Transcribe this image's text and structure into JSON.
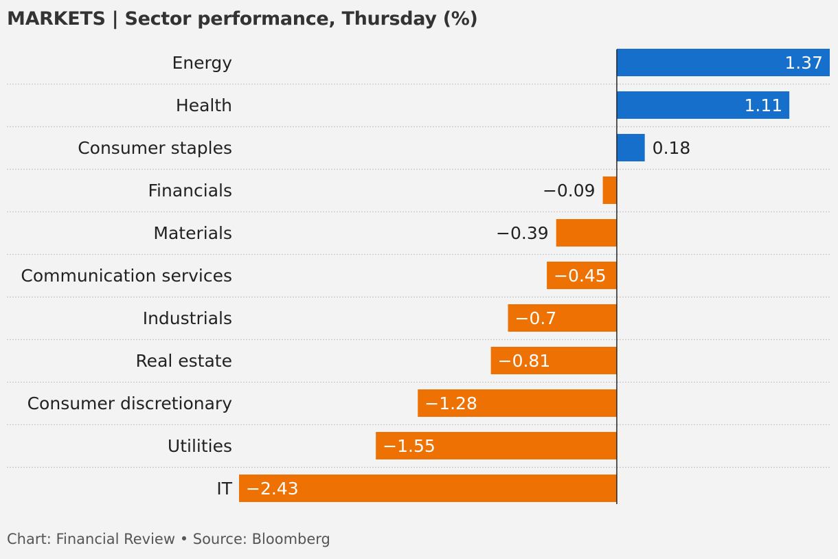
{
  "chart_data": {
    "type": "bar",
    "orientation": "horizontal",
    "title": "MARKETS | Sector performance, Thursday (%)",
    "categories": [
      "Energy",
      "Health",
      "Consumer staples",
      "Financials",
      "Materials",
      "Communication services",
      "Industrials",
      "Real estate",
      "Consumer discretionary",
      "Utilities",
      "IT"
    ],
    "values": [
      1.37,
      1.11,
      0.18,
      -0.09,
      -0.39,
      -0.45,
      -0.7,
      -0.81,
      -1.28,
      -1.55,
      -2.43
    ],
    "value_labels": [
      "1.37",
      "1.11",
      "0.18",
      "−0.09",
      "−0.39",
      "−0.45",
      "−0.7",
      "−0.81",
      "−1.28",
      "−1.55",
      "−2.43"
    ],
    "xlim": [
      -2.43,
      1.37
    ],
    "xlabel": "",
    "ylabel": "",
    "grid": false,
    "row_separators": "dotted",
    "colors": {
      "positive": "#156fcb",
      "negative": "#ee7203",
      "zero_line": "#222222",
      "separator": "#c8c8c8"
    }
  },
  "footer": "Chart: Financial Review • Source: Bloomberg"
}
